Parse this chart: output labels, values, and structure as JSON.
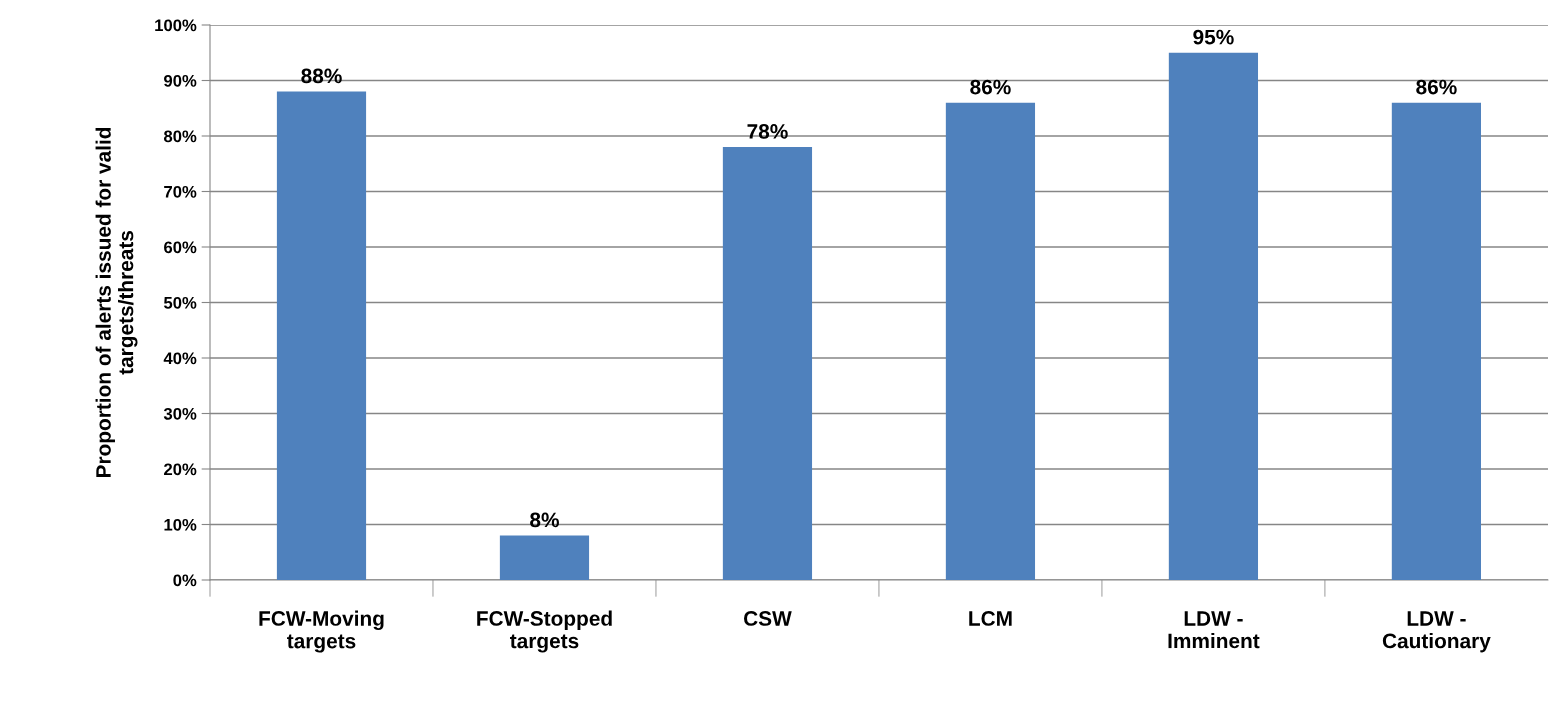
{
  "chart_data": {
    "type": "bar",
    "ylabel": "Proportion of alerts issued for valid\ntargets/threats",
    "categories": [
      "FCW-Moving\ntargets",
      "FCW-Stopped\ntargets",
      "CSW",
      "LCM",
      "LDW -\nImminent",
      "LDW -\nCautionary"
    ],
    "values": [
      88,
      8,
      78,
      86,
      95,
      86
    ],
    "value_labels": [
      "88%",
      "8%",
      "78%",
      "86%",
      "95%",
      "86%"
    ],
    "color": "#4f81bd",
    "ylim": [
      0,
      100
    ],
    "yticks": [
      {
        "value": 0,
        "label": "0%"
      },
      {
        "value": 10,
        "label": "10%"
      },
      {
        "value": 20,
        "label": "20%"
      },
      {
        "value": 30,
        "label": "30%"
      },
      {
        "value": 40,
        "label": "40%"
      },
      {
        "value": 50,
        "label": "50%"
      },
      {
        "value": 60,
        "label": "60%"
      },
      {
        "value": 70,
        "label": "70%"
      },
      {
        "value": 80,
        "label": "80%"
      },
      {
        "value": 90,
        "label": "90%"
      },
      {
        "value": 100,
        "label": "100%"
      }
    ],
    "grid": "y",
    "legend": false
  }
}
